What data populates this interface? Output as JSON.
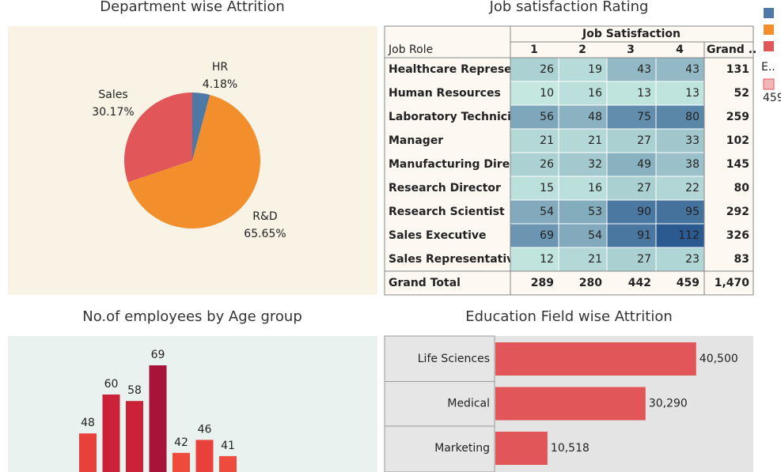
{
  "chart_data": [
    {
      "type": "pie",
      "title": "Department wise Attrition",
      "categories": [
        "HR",
        "R&D",
        "Sales"
      ],
      "values": [
        4.18,
        65.65,
        30.17
      ],
      "value_labels": [
        "4.18%",
        "65.65%",
        "30.17%"
      ],
      "colors": [
        "#4e79a7",
        "#f28e2b",
        "#e15759"
      ]
    },
    {
      "type": "heatmap",
      "title": "Job satisfaction Rating",
      "row_header": "Job Role",
      "col_header": "Job Satisfaction",
      "columns": [
        1,
        2,
        3,
        4
      ],
      "total_label": "Grand ..",
      "total_row_label": "Grand Total",
      "rows": [
        "Healthcare Represe..",
        "Human Resources",
        "Laboratory Technici..",
        "Manager",
        "Manufacturing Direc..",
        "Research Director",
        "Research Scientist",
        "Sales Executive",
        "Sales Representative"
      ],
      "values": [
        [
          26,
          19,
          43,
          43
        ],
        [
          10,
          16,
          13,
          13
        ],
        [
          56,
          48,
          75,
          80
        ],
        [
          21,
          21,
          27,
          33
        ],
        [
          26,
          32,
          49,
          38
        ],
        [
          15,
          16,
          27,
          22
        ],
        [
          54,
          53,
          90,
          95
        ],
        [
          69,
          54,
          91,
          112
        ],
        [
          12,
          21,
          27,
          23
        ]
      ],
      "row_totals": [
        131,
        52,
        259,
        102,
        145,
        80,
        292,
        326,
        83
      ],
      "col_totals": [
        289,
        280,
        442,
        459
      ],
      "grand_total": 1470,
      "grand_total_label": "1,470",
      "color_range": [
        "#c4e7df",
        "#2a5a8f"
      ],
      "legend_title": "E..",
      "legend_label": "459"
    },
    {
      "type": "bar",
      "title": "No.of employees by Age group",
      "categories": [
        null,
        null,
        null,
        null,
        null,
        null,
        null
      ],
      "values": [
        48,
        60,
        58,
        69,
        42,
        46,
        41
      ],
      "colors": [
        "#e8413c",
        "#cc2239",
        "#cc2239",
        "#a8133a",
        "#ef4b3d",
        "#e8413c",
        "#ef4b3d"
      ],
      "ylim": [
        0,
        100
      ]
    },
    {
      "type": "hbar",
      "title": "Education Field wise Attrition",
      "categories": [
        "Life Sciences",
        "Medical",
        "Marketing"
      ],
      "values": [
        40500,
        30290,
        10518
      ],
      "value_labels": [
        "40,500",
        "30,290",
        "10,518"
      ],
      "color": "#e15759",
      "xlim": [
        0,
        45000
      ]
    }
  ]
}
